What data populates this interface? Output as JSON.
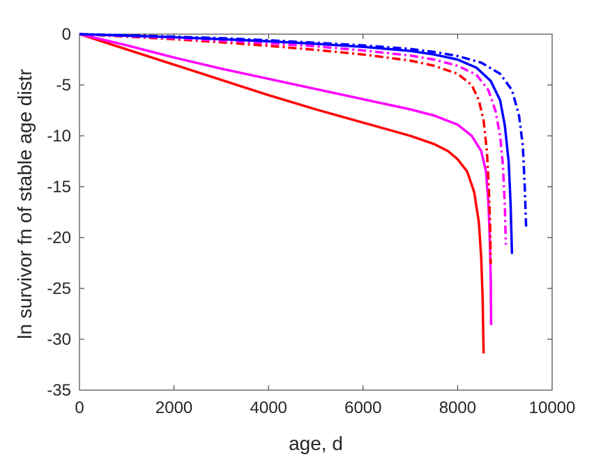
{
  "chart_data": {
    "type": "line",
    "title": "",
    "xlabel": "age, d",
    "ylabel": "ln survivor fn of stable age distr",
    "xlim": [
      0,
      10000
    ],
    "ylim": [
      -35,
      0
    ],
    "xticks": [
      0,
      2000,
      4000,
      6000,
      8000,
      10000
    ],
    "xtick_labels": [
      "0",
      "2000",
      "4000",
      "6000",
      "8000",
      "10000"
    ],
    "yticks": [
      0,
      -5,
      -10,
      -15,
      -20,
      -25,
      -30,
      -35
    ],
    "ytick_labels": [
      "0",
      "-5",
      "-10",
      "-15",
      "-20",
      "-25",
      "-30",
      "-35"
    ],
    "grid": false,
    "legend": "none",
    "series": [
      {
        "color": "#ff0000",
        "style": "solid",
        "points": [
          [
            0,
            0
          ],
          [
            1000,
            -1.5
          ],
          [
            2000,
            -3
          ],
          [
            3000,
            -4.5
          ],
          [
            4000,
            -6
          ],
          [
            5000,
            -7.4
          ],
          [
            6000,
            -8.7
          ],
          [
            7000,
            -10
          ],
          [
            7500,
            -10.8
          ],
          [
            7800,
            -11.5
          ],
          [
            8000,
            -12.3
          ],
          [
            8200,
            -13.5
          ],
          [
            8350,
            -15.5
          ],
          [
            8450,
            -18.5
          ],
          [
            8500,
            -22
          ],
          [
            8530,
            -26
          ],
          [
            8550,
            -31.4
          ]
        ]
      },
      {
        "color": "#ff00ff",
        "style": "solid",
        "points": [
          [
            0,
            0
          ],
          [
            1000,
            -1.1
          ],
          [
            2000,
            -2.3
          ],
          [
            3000,
            -3.4
          ],
          [
            4000,
            -4.4
          ],
          [
            5000,
            -5.4
          ],
          [
            6000,
            -6.4
          ],
          [
            7000,
            -7.4
          ],
          [
            7500,
            -8
          ],
          [
            8000,
            -8.9
          ],
          [
            8300,
            -10
          ],
          [
            8500,
            -11.5
          ],
          [
            8600,
            -13.5
          ],
          [
            8650,
            -16.5
          ],
          [
            8680,
            -20
          ],
          [
            8700,
            -24
          ],
          [
            8710,
            -28.6
          ]
        ]
      },
      {
        "color": "#ff0000",
        "style": "dashdot",
        "points": [
          [
            0,
            0
          ],
          [
            1000,
            -0.25
          ],
          [
            2000,
            -0.5
          ],
          [
            3000,
            -0.8
          ],
          [
            4000,
            -1.15
          ],
          [
            5000,
            -1.55
          ],
          [
            6000,
            -2
          ],
          [
            7000,
            -2.6
          ],
          [
            7500,
            -3.1
          ],
          [
            8000,
            -3.9
          ],
          [
            8300,
            -5
          ],
          [
            8450,
            -6.5
          ],
          [
            8550,
            -8.5
          ],
          [
            8620,
            -11.5
          ],
          [
            8660,
            -15
          ],
          [
            8690,
            -19
          ],
          [
            8700,
            -22.6
          ]
        ]
      },
      {
        "color": "#ff00ff",
        "style": "dashdot",
        "points": [
          [
            0,
            0
          ],
          [
            1000,
            -0.2
          ],
          [
            2000,
            -0.4
          ],
          [
            3000,
            -0.65
          ],
          [
            4000,
            -0.9
          ],
          [
            5000,
            -1.2
          ],
          [
            6000,
            -1.6
          ],
          [
            7000,
            -2.1
          ],
          [
            7500,
            -2.5
          ],
          [
            8000,
            -3.1
          ],
          [
            8400,
            -4
          ],
          [
            8650,
            -5.5
          ],
          [
            8800,
            -7.5
          ],
          [
            8900,
            -10
          ],
          [
            8960,
            -13
          ],
          [
            9000,
            -17
          ],
          [
            9020,
            -20.7
          ]
        ]
      },
      {
        "color": "#0000ff",
        "style": "solid",
        "points": [
          [
            0,
            0
          ],
          [
            1000,
            -0.15
          ],
          [
            2000,
            -0.3
          ],
          [
            3000,
            -0.5
          ],
          [
            4000,
            -0.7
          ],
          [
            5000,
            -0.95
          ],
          [
            6000,
            -1.25
          ],
          [
            7000,
            -1.65
          ],
          [
            7500,
            -2
          ],
          [
            8000,
            -2.5
          ],
          [
            8400,
            -3.3
          ],
          [
            8700,
            -4.6
          ],
          [
            8900,
            -6.5
          ],
          [
            9000,
            -9
          ],
          [
            9080,
            -12.5
          ],
          [
            9120,
            -16.5
          ],
          [
            9150,
            -21.6
          ]
        ]
      },
      {
        "color": "#0000ff",
        "style": "dashdot",
        "points": [
          [
            0,
            0
          ],
          [
            1000,
            -0.1
          ],
          [
            2000,
            -0.25
          ],
          [
            3000,
            -0.4
          ],
          [
            4000,
            -0.6
          ],
          [
            5000,
            -0.85
          ],
          [
            6000,
            -1.1
          ],
          [
            7000,
            -1.45
          ],
          [
            7500,
            -1.75
          ],
          [
            8000,
            -2.15
          ],
          [
            8500,
            -2.8
          ],
          [
            8900,
            -3.9
          ],
          [
            9150,
            -5.5
          ],
          [
            9300,
            -8
          ],
          [
            9380,
            -11
          ],
          [
            9420,
            -15
          ],
          [
            9450,
            -19
          ]
        ]
      }
    ]
  }
}
